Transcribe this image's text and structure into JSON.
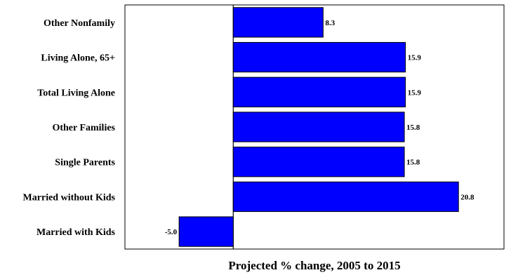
{
  "chart_data": {
    "type": "bar",
    "orientation": "horizontal",
    "categories": [
      "Other Nonfamily",
      "Living Alone, 65+",
      "Total Living Alone",
      "Other Families",
      "Single Parents",
      "Married without Kids",
      "Married with Kids"
    ],
    "values": [
      8.3,
      15.9,
      15.9,
      15.8,
      15.8,
      20.8,
      -5.0
    ],
    "value_labels": [
      "8.3",
      "15.9",
      "15.9",
      "15.8",
      "15.8",
      "20.8",
      "-5.0"
    ],
    "xlabel": "Projected % change, 2005 to 2015",
    "ylabel": "",
    "xlim": [
      -10,
      25
    ],
    "grid": false,
    "bar_color": "#0000FF",
    "bar_edge_color": "#000000"
  }
}
